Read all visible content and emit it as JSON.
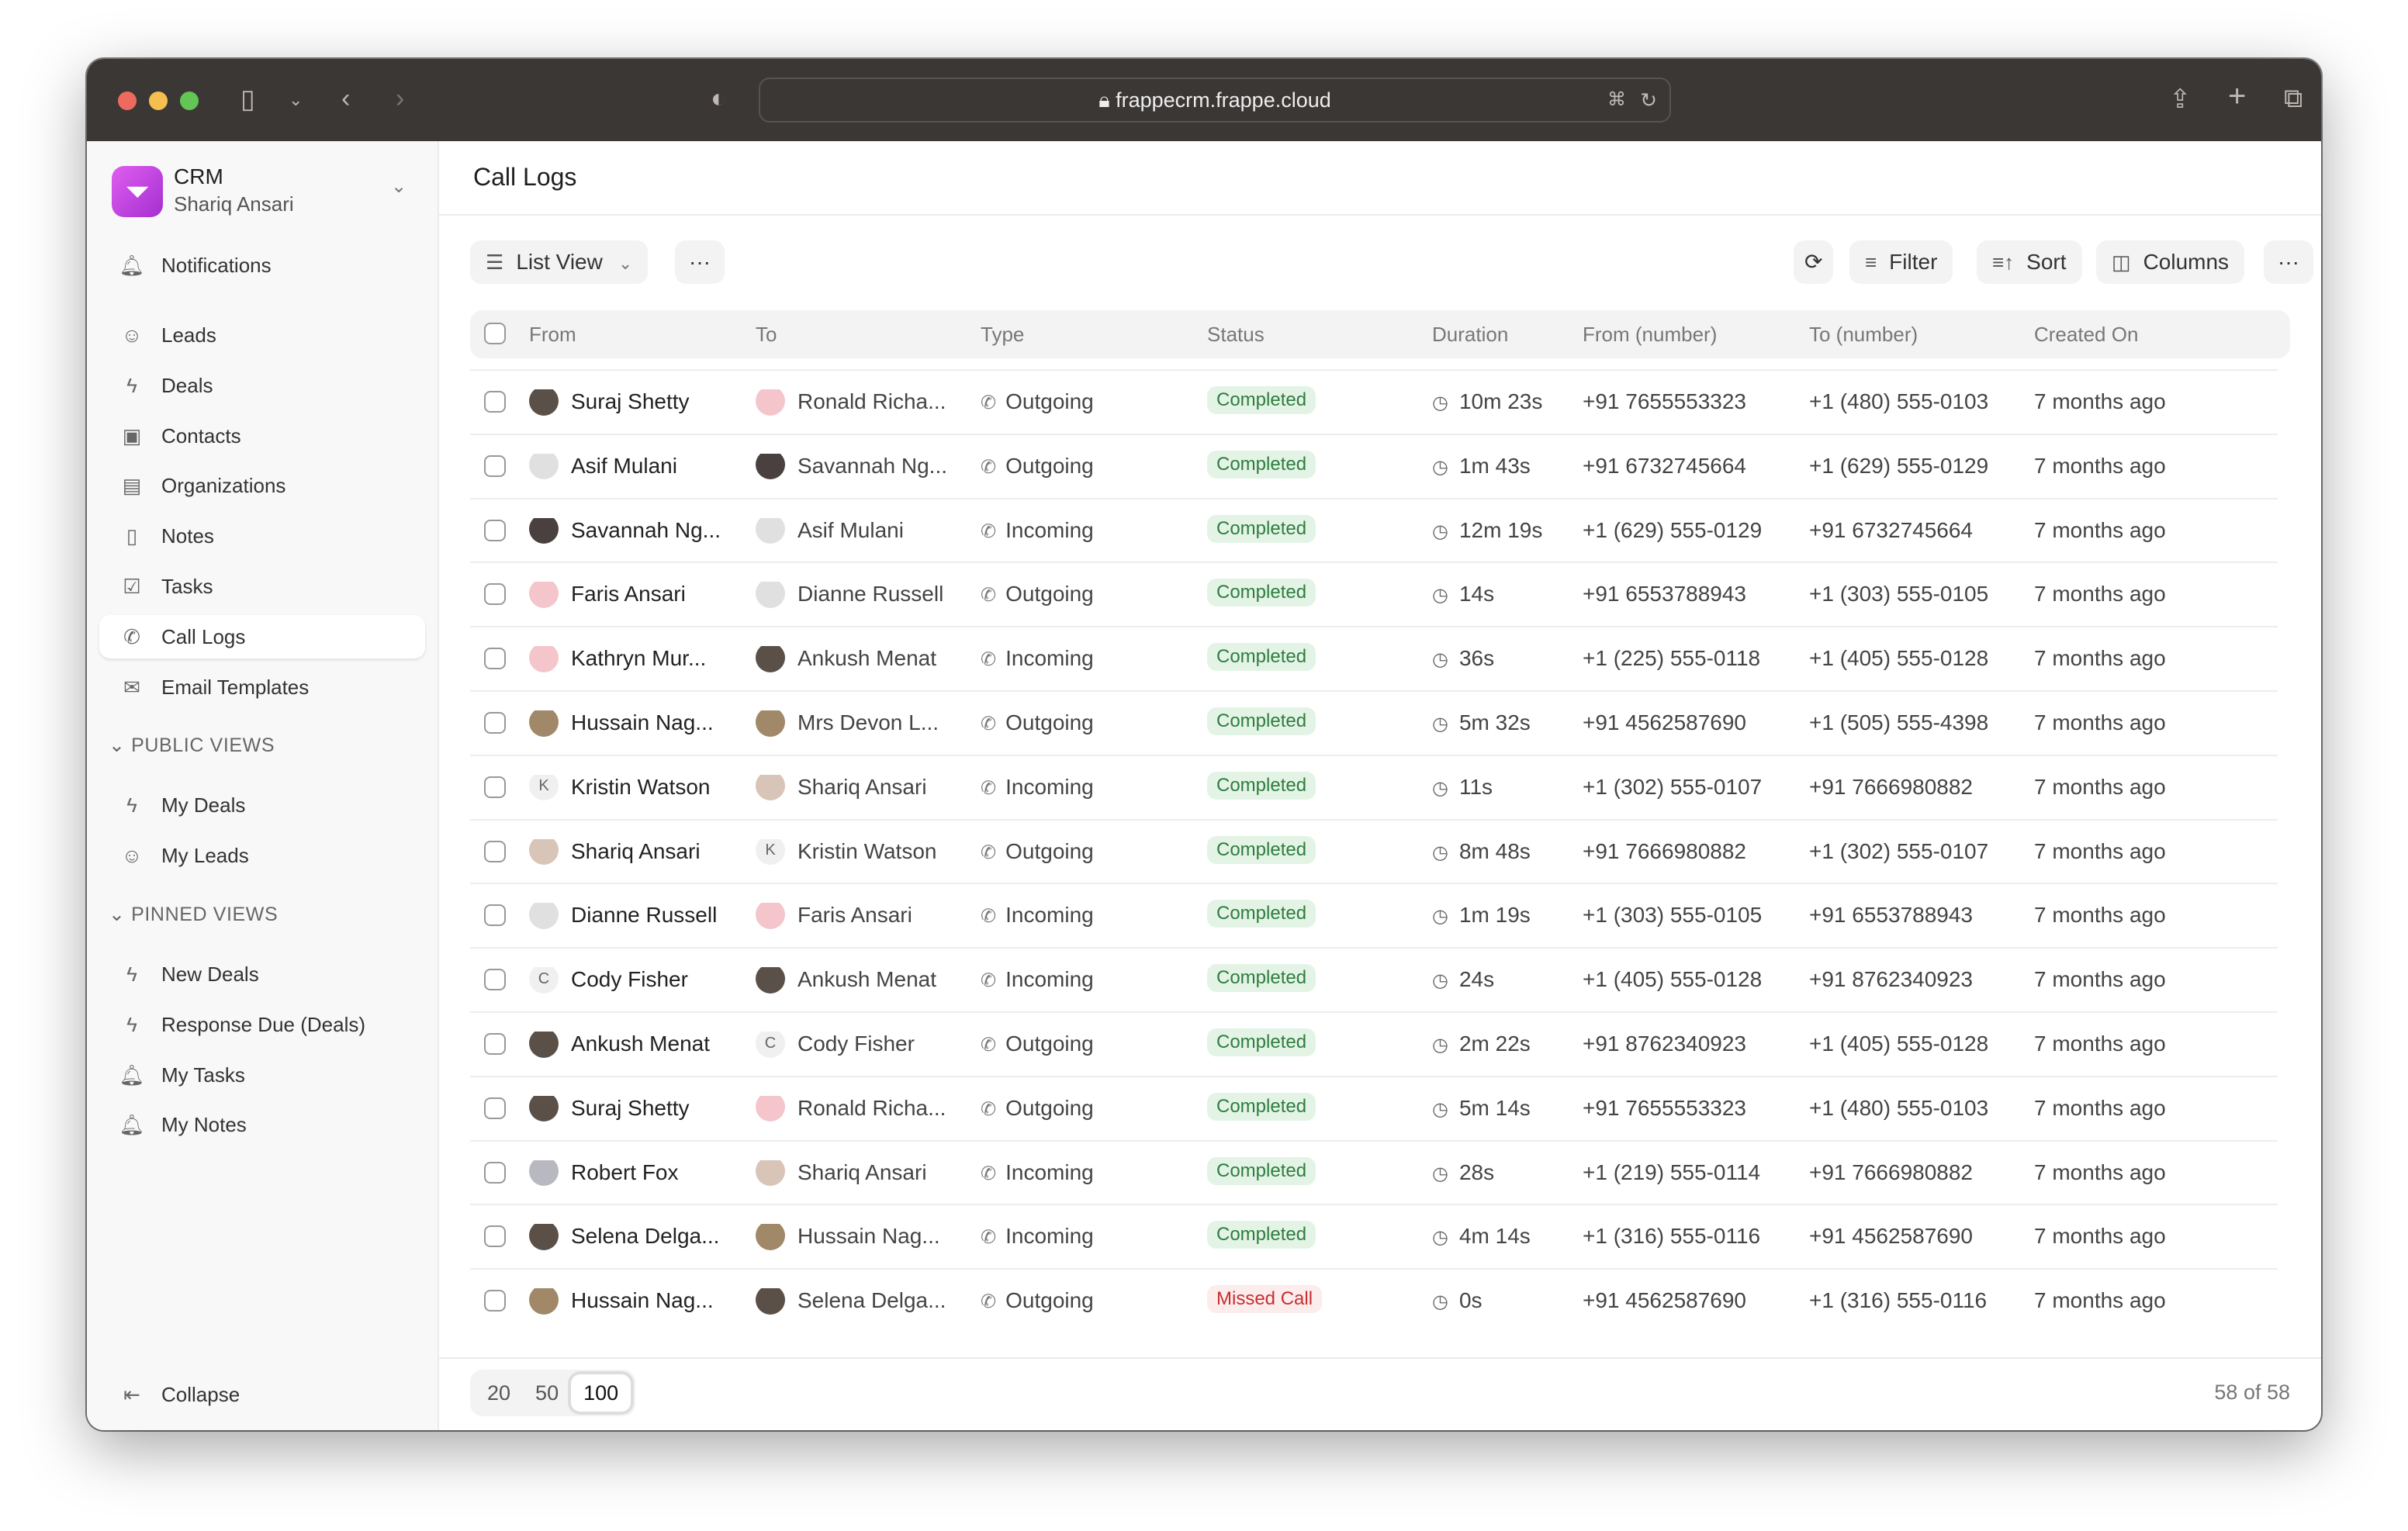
{
  "browser": {
    "url": "frappecrm.frappe.cloud"
  },
  "sidebar": {
    "app": "CRM",
    "user": "Shariq Ansari",
    "top": [
      {
        "label": "Notifications",
        "icon": "bell-icon"
      }
    ],
    "items": [
      {
        "label": "Leads",
        "icon": "users-icon"
      },
      {
        "label": "Deals",
        "icon": "bolt-icon"
      },
      {
        "label": "Contacts",
        "icon": "contact-icon"
      },
      {
        "label": "Organizations",
        "icon": "building-icon"
      },
      {
        "label": "Notes",
        "icon": "file-icon"
      },
      {
        "label": "Tasks",
        "icon": "check-square-icon"
      },
      {
        "label": "Call Logs",
        "icon": "phone-icon",
        "active": true
      },
      {
        "label": "Email Templates",
        "icon": "mail-icon"
      }
    ],
    "public_title": "PUBLIC VIEWS",
    "public": [
      {
        "label": "My Deals",
        "icon": "bolt-icon"
      },
      {
        "label": "My Leads",
        "icon": "users-icon"
      }
    ],
    "pinned_title": "PINNED VIEWS",
    "pinned": [
      {
        "label": "New Deals",
        "icon": "bolt-icon"
      },
      {
        "label": "Response Due (Deals)",
        "icon": "bolt-icon"
      },
      {
        "label": "My Tasks",
        "icon": "bell-icon"
      },
      {
        "label": "My Notes",
        "icon": "bell-icon"
      }
    ],
    "collapse": "Collapse"
  },
  "main": {
    "title": "Call Logs",
    "view": "List View",
    "filter": "Filter",
    "sort": "Sort",
    "columns_btn": "Columns",
    "columns": [
      "From",
      "To",
      "Type",
      "Status",
      "Duration",
      "From (number)",
      "To (number)",
      "Created On"
    ],
    "rows": [
      [
        "Suraj Shetty",
        "Ronald Richa...",
        "Outgoing",
        "Completed",
        "10m 23s",
        "+91 7655553323",
        "+1 (480) 555-0103",
        "7 months ago"
      ],
      [
        "Asif Mulani",
        "Savannah Ng...",
        "Outgoing",
        "Completed",
        "1m 43s",
        "+91 6732745664",
        "+1 (629) 555-0129",
        "7 months ago"
      ],
      [
        "Savannah Ng...",
        "Asif Mulani",
        "Incoming",
        "Completed",
        "12m 19s",
        "+1 (629) 555-0129",
        "+91 6732745664",
        "7 months ago"
      ],
      [
        "Faris Ansari",
        "Dianne Russell",
        "Outgoing",
        "Completed",
        "14s",
        "+91 6553788943",
        "+1 (303) 555-0105",
        "7 months ago"
      ],
      [
        "Kathryn Mur...",
        "Ankush Menat",
        "Incoming",
        "Completed",
        "36s",
        "+1 (225) 555-0118",
        "+1 (405) 555-0128",
        "7 months ago"
      ],
      [
        "Hussain Nag...",
        "Mrs Devon L...",
        "Outgoing",
        "Completed",
        "5m 32s",
        "+91 4562587690",
        "+1 (505) 555-4398",
        "7 months ago"
      ],
      [
        "Kristin Watson",
        "Shariq Ansari",
        "Incoming",
        "Completed",
        "11s",
        "+1 (302) 555-0107",
        "+91 7666980882",
        "7 months ago"
      ],
      [
        "Shariq Ansari",
        "Kristin Watson",
        "Outgoing",
        "Completed",
        "8m 48s",
        "+91 7666980882",
        "+1 (302) 555-0107",
        "7 months ago"
      ],
      [
        "Dianne Russell",
        "Faris Ansari",
        "Incoming",
        "Completed",
        "1m 19s",
        "+1 (303) 555-0105",
        "+91 6553788943",
        "7 months ago"
      ],
      [
        "Cody Fisher",
        "Ankush Menat",
        "Incoming",
        "Completed",
        "24s",
        "+1 (405) 555-0128",
        "+91 8762340923",
        "7 months ago"
      ],
      [
        "Ankush Menat",
        "Cody Fisher",
        "Outgoing",
        "Completed",
        "2m 22s",
        "+91 8762340923",
        "+1 (405) 555-0128",
        "7 months ago"
      ],
      [
        "Suraj Shetty",
        "Ronald Richa...",
        "Outgoing",
        "Completed",
        "5m 14s",
        "+91 7655553323",
        "+1 (480) 555-0103",
        "7 months ago"
      ],
      [
        "Robert Fox",
        "Shariq Ansari",
        "Incoming",
        "Completed",
        "28s",
        "+1 (219) 555-0114",
        "+91 7666980882",
        "7 months ago"
      ],
      [
        "Selena Delga...",
        "Hussain Nag...",
        "Incoming",
        "Completed",
        "4m 14s",
        "+1 (316) 555-0116",
        "+91 4562587690",
        "7 months ago"
      ],
      [
        "Hussain Nag...",
        "Selena Delga...",
        "Outgoing",
        "Missed Call",
        "0s",
        "+91 4562587690",
        "+1 (316) 555-0116",
        "7 months ago"
      ]
    ],
    "page_sizes": [
      "20",
      "50",
      "100"
    ],
    "page_size_selected": "100",
    "count": "58 of 58"
  },
  "colors": {
    "completed_bg": "#e3f4e6",
    "completed_fg": "#2f7d3e",
    "missed_bg": "#fdecec",
    "missed_fg": "#c53030",
    "accent": "#c53ad9"
  }
}
